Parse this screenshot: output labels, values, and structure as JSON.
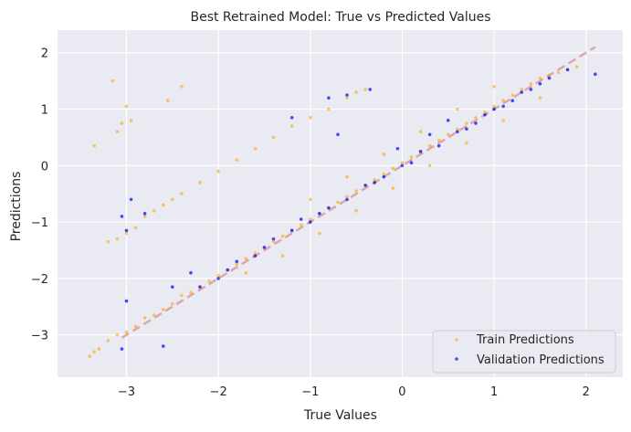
{
  "chart_data": {
    "type": "scatter",
    "title": "Best Retrained Model: True vs Predicted Values",
    "xlabel": "True Values",
    "ylabel": "Predictions",
    "xlim": [
      -3.75,
      2.4
    ],
    "ylim": [
      -3.75,
      2.4
    ],
    "xticks": [
      -3,
      -2,
      -1,
      0,
      1,
      2
    ],
    "yticks": [
      -3,
      -2,
      -1,
      0,
      1,
      2
    ],
    "xtick_labels": [
      "−3",
      "−2",
      "−1",
      "0",
      "1",
      "2"
    ],
    "ytick_labels": [
      "−3",
      "−2",
      "−1",
      "0",
      "1",
      "2"
    ],
    "grid": true,
    "background": "#eaeaf2",
    "legend_position": "lower-right",
    "reference_line": {
      "x": [
        -3.05,
        2.1
      ],
      "y": [
        -3.05,
        2.1
      ],
      "color": "#d9a0a8",
      "style": "dashed"
    },
    "series": [
      {
        "name": "Train Predictions",
        "color": "#ffa500",
        "points": [
          [
            -3.4,
            -3.38
          ],
          [
            -3.35,
            -3.3
          ],
          [
            -3.3,
            -3.25
          ],
          [
            -3.2,
            -3.1
          ],
          [
            -3.1,
            -3.0
          ],
          [
            -3.0,
            -2.95
          ],
          [
            -2.9,
            -2.85
          ],
          [
            -2.8,
            -2.7
          ],
          [
            -2.7,
            -2.65
          ],
          [
            -2.6,
            -2.55
          ],
          [
            -2.5,
            -2.45
          ],
          [
            -2.4,
            -2.3
          ],
          [
            -2.3,
            -2.25
          ],
          [
            -2.2,
            -2.15
          ],
          [
            -2.1,
            -2.05
          ],
          [
            -2.0,
            -1.95
          ],
          [
            -1.9,
            -1.85
          ],
          [
            -1.8,
            -1.75
          ],
          [
            -1.7,
            -1.65
          ],
          [
            -1.6,
            -1.55
          ],
          [
            -1.5,
            -1.45
          ],
          [
            -1.4,
            -1.35
          ],
          [
            -1.3,
            -1.25
          ],
          [
            -1.2,
            -1.15
          ],
          [
            -1.1,
            -1.05
          ],
          [
            -1.0,
            -0.95
          ],
          [
            -0.9,
            -0.85
          ],
          [
            -0.8,
            -0.75
          ],
          [
            -0.7,
            -0.65
          ],
          [
            -0.6,
            -0.55
          ],
          [
            -0.5,
            -0.45
          ],
          [
            -0.4,
            -0.35
          ],
          [
            -0.3,
            -0.25
          ],
          [
            -0.2,
            -0.15
          ],
          [
            -0.1,
            -0.05
          ],
          [
            0.0,
            0.05
          ],
          [
            0.1,
            0.15
          ],
          [
            0.2,
            0.25
          ],
          [
            0.3,
            0.35
          ],
          [
            0.4,
            0.45
          ],
          [
            0.5,
            0.55
          ],
          [
            0.6,
            0.65
          ],
          [
            0.7,
            0.75
          ],
          [
            0.8,
            0.85
          ],
          [
            0.9,
            0.95
          ],
          [
            1.0,
            1.05
          ],
          [
            1.1,
            1.15
          ],
          [
            1.2,
            1.25
          ],
          [
            1.3,
            1.35
          ],
          [
            1.4,
            1.45
          ],
          [
            1.5,
            1.55
          ],
          [
            1.6,
            1.6
          ],
          [
            1.7,
            1.65
          ],
          [
            1.8,
            1.7
          ],
          [
            1.9,
            1.75
          ],
          [
            -3.2,
            -1.35
          ],
          [
            -3.1,
            -1.3
          ],
          [
            -3.0,
            -1.2
          ],
          [
            -2.9,
            -1.1
          ],
          [
            -2.8,
            -0.9
          ],
          [
            -2.7,
            -0.8
          ],
          [
            -2.6,
            -0.7
          ],
          [
            -2.5,
            -0.6
          ],
          [
            -2.4,
            -0.5
          ],
          [
            -2.2,
            -0.3
          ],
          [
            -2.0,
            -0.1
          ],
          [
            -1.8,
            0.1
          ],
          [
            -1.6,
            0.3
          ],
          [
            -1.4,
            0.5
          ],
          [
            -1.2,
            0.7
          ],
          [
            -1.0,
            0.85
          ],
          [
            -0.8,
            1.0
          ],
          [
            -0.6,
            1.2
          ],
          [
            -0.5,
            1.3
          ],
          [
            -0.4,
            1.35
          ],
          [
            -3.15,
            1.5
          ],
          [
            -3.0,
            1.05
          ],
          [
            -2.4,
            1.4
          ],
          [
            -2.55,
            1.15
          ],
          [
            -3.35,
            0.35
          ],
          [
            -3.1,
            0.6
          ],
          [
            -3.05,
            0.75
          ],
          [
            -2.95,
            0.8
          ],
          [
            -1.7,
            -1.9
          ],
          [
            -1.3,
            -1.6
          ],
          [
            -0.9,
            -1.2
          ],
          [
            -0.5,
            -0.8
          ],
          [
            -0.1,
            -0.4
          ],
          [
            0.3,
            0.0
          ],
          [
            0.7,
            0.4
          ],
          [
            1.1,
            0.8
          ],
          [
            1.5,
            1.2
          ],
          [
            -1.0,
            -0.6
          ],
          [
            -0.6,
            -0.2
          ],
          [
            -0.2,
            0.2
          ],
          [
            0.2,
            0.6
          ],
          [
            0.6,
            1.0
          ],
          [
            1.0,
            1.4
          ]
        ]
      },
      {
        "name": "Validation Predictions",
        "color": "#0000ff",
        "points": [
          [
            -3.05,
            -3.25
          ],
          [
            -3.0,
            -2.4
          ],
          [
            -2.6,
            -3.2
          ],
          [
            -2.5,
            -2.15
          ],
          [
            -2.3,
            -1.9
          ],
          [
            -2.0,
            -2.0
          ],
          [
            -1.8,
            -1.7
          ],
          [
            -1.6,
            -1.6
          ],
          [
            -1.4,
            -1.3
          ],
          [
            -1.2,
            -1.15
          ],
          [
            -1.0,
            -1.0
          ],
          [
            -0.8,
            -0.75
          ],
          [
            -0.6,
            -0.6
          ],
          [
            -0.4,
            -0.35
          ],
          [
            -0.2,
            -0.2
          ],
          [
            0.0,
            0.0
          ],
          [
            0.2,
            0.25
          ],
          [
            0.4,
            0.35
          ],
          [
            0.6,
            0.6
          ],
          [
            0.8,
            0.75
          ],
          [
            1.0,
            1.0
          ],
          [
            1.2,
            1.15
          ],
          [
            1.4,
            1.35
          ],
          [
            1.6,
            1.55
          ],
          [
            1.8,
            1.7
          ],
          [
            2.1,
            1.62
          ],
          [
            -2.95,
            -0.6
          ],
          [
            -3.05,
            -0.9
          ],
          [
            -3.0,
            -1.15
          ],
          [
            -2.8,
            -0.85
          ],
          [
            -1.2,
            0.85
          ],
          [
            -0.8,
            1.2
          ],
          [
            -0.35,
            1.35
          ],
          [
            -0.6,
            1.25
          ],
          [
            -0.7,
            0.55
          ],
          [
            -0.05,
            0.3
          ],
          [
            0.3,
            0.55
          ],
          [
            0.5,
            0.8
          ],
          [
            0.9,
            0.9
          ],
          [
            1.1,
            1.05
          ],
          [
            -1.5,
            -1.45
          ],
          [
            -1.1,
            -0.95
          ],
          [
            -0.3,
            -0.3
          ],
          [
            0.1,
            0.05
          ],
          [
            0.7,
            0.65
          ],
          [
            1.3,
            1.3
          ],
          [
            1.5,
            1.45
          ],
          [
            -2.2,
            -2.15
          ],
          [
            -1.9,
            -1.85
          ],
          [
            -0.9,
            -0.85
          ]
        ]
      }
    ]
  }
}
